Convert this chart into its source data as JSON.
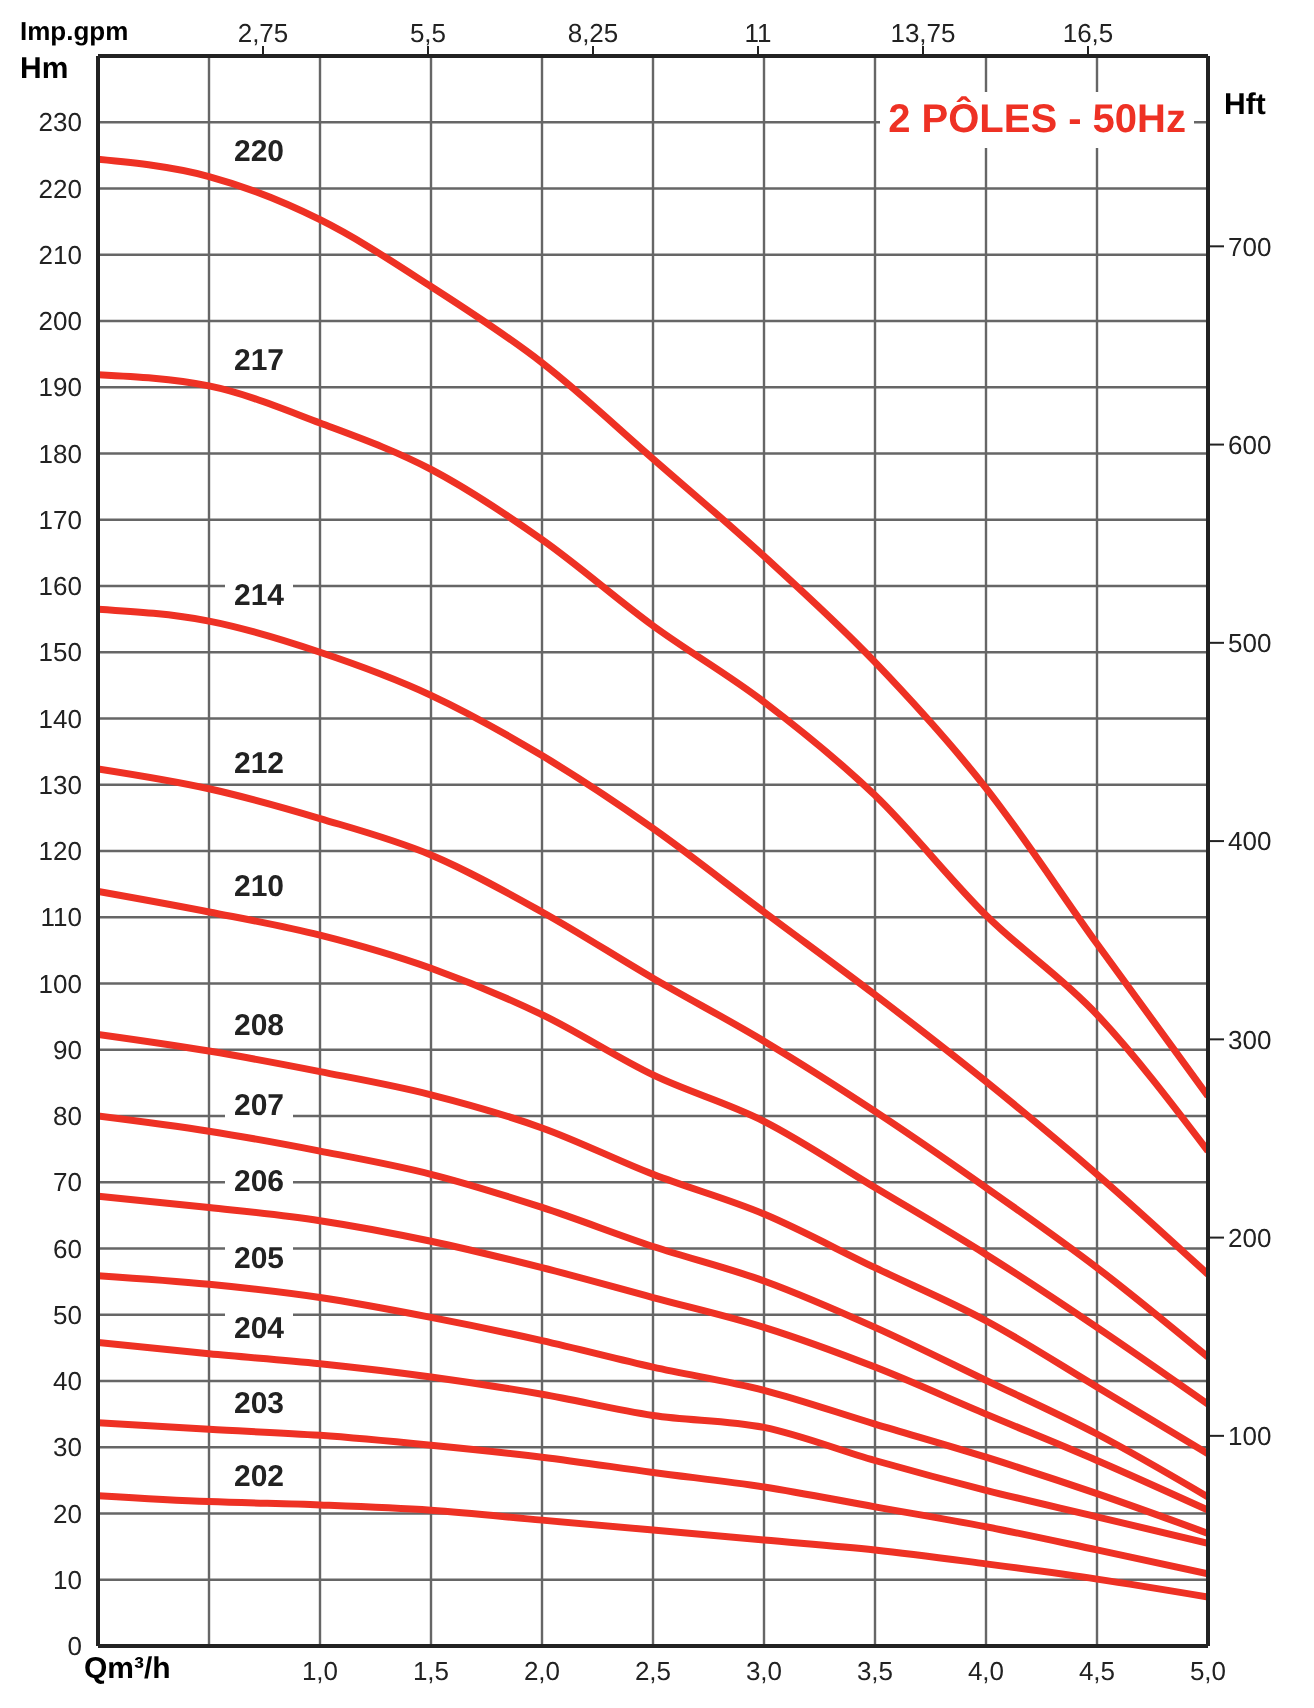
{
  "chart_data": {
    "type": "line",
    "title": "2 PÔLES - 50Hz",
    "xlabel": "Qm³/h",
    "ylabel": "Hm",
    "y2label": "Hft",
    "x2label": "Imp.gpm",
    "x": [
      0,
      0.5,
      1,
      1.5,
      2,
      2.5,
      3,
      3.5,
      4,
      4.5,
      5
    ],
    "series": [
      {
        "name": "220",
        "color": "#ee3124",
        "values": [
          224.4,
          221.8,
          215.3,
          205.2,
          193.7,
          179.2,
          164.5,
          148.5,
          129.5,
          106,
          83
        ]
      },
      {
        "name": "217",
        "color": "#ee3124",
        "values": [
          191.9,
          190.2,
          184.6,
          177.6,
          167,
          154,
          142.5,
          128.4,
          110.3,
          95.3,
          74.7
        ]
      },
      {
        "name": "214",
        "color": "#ee3124",
        "values": [
          156.5,
          154.7,
          150,
          143.5,
          134.4,
          123.4,
          110.8,
          98.3,
          85.2,
          71.2,
          56.1
        ]
      },
      {
        "name": "212",
        "color": "#ee3124",
        "values": [
          132.4,
          129.4,
          124.9,
          119.4,
          110.8,
          100.8,
          91.3,
          80.7,
          69.2,
          57.1,
          43.6
        ]
      },
      {
        "name": "210",
        "color": "#ee3124",
        "values": [
          113.9,
          110.8,
          107.3,
          102.3,
          95.3,
          86.2,
          79.2,
          69.2,
          59.1,
          48.1,
          36.5
        ]
      },
      {
        "name": "208",
        "color": "#ee3124",
        "values": [
          92.3,
          89.8,
          86.7,
          83.2,
          78.2,
          71.2,
          65.2,
          57.1,
          49.1,
          39.1,
          29
        ]
      },
      {
        "name": "207",
        "color": "#ee3124",
        "values": [
          80,
          77.7,
          74.7,
          71.2,
          66.2,
          60.3,
          55.1,
          48.1,
          40.1,
          32,
          22.5
        ]
      },
      {
        "name": "206",
        "color": "#ee3124",
        "values": [
          67.9,
          66.2,
          64.2,
          61.1,
          57.1,
          52.6,
          48.1,
          42.1,
          35,
          28,
          20.5
        ]
      },
      {
        "name": "205",
        "color": "#ee3124",
        "values": [
          55.9,
          54.6,
          52.6,
          49.6,
          46.1,
          42.1,
          38.6,
          33.5,
          28.5,
          23,
          17
        ]
      },
      {
        "name": "204",
        "color": "#ee3124",
        "values": [
          45.8,
          44.1,
          42.6,
          40.6,
          38,
          34.8,
          33,
          28,
          23.5,
          19.5,
          15.5
        ]
      },
      {
        "name": "203",
        "color": "#ee3124",
        "values": [
          33.7,
          32.7,
          31.8,
          30.3,
          28.5,
          26.2,
          24,
          21,
          18,
          14.5,
          10.9
        ]
      },
      {
        "name": "202",
        "color": "#ee3124",
        "values": [
          22.7,
          21.8,
          21.3,
          20.5,
          19,
          17.5,
          16,
          14.5,
          12.4,
          10.1,
          7.4
        ]
      }
    ],
    "xlim": [
      0,
      5
    ],
    "xticks": [
      {
        "value": 0.5,
        "label": null
      },
      {
        "value": 1,
        "label": "1,0"
      },
      {
        "value": 1.5,
        "label": "1,5"
      },
      {
        "value": 2,
        "label": "2,0"
      },
      {
        "value": 2.5,
        "label": "2,5"
      },
      {
        "value": 3,
        "label": "3,0"
      },
      {
        "value": 3.5,
        "label": "3,5"
      },
      {
        "value": 4,
        "label": "4,0"
      },
      {
        "value": 4.5,
        "label": "4,5"
      },
      {
        "value": 5,
        "label": "5,0"
      }
    ],
    "ylim": [
      0,
      240
    ],
    "yticks": [
      0,
      10,
      20,
      30,
      40,
      50,
      60,
      70,
      80,
      90,
      100,
      110,
      120,
      130,
      140,
      150,
      160,
      170,
      180,
      190,
      200,
      210,
      220,
      230
    ],
    "y2lim": [
      -6,
      796
    ],
    "y2ticks": [
      100,
      200,
      300,
      400,
      500,
      600,
      700
    ],
    "x2lim": [
      0,
      18.5
    ],
    "x2ticks": [
      {
        "value": 2.75,
        "label": "2,75"
      },
      {
        "value": 5.5,
        "label": "5,5"
      },
      {
        "value": 8.25,
        "label": "8,25"
      },
      {
        "value": 11,
        "label": "11"
      },
      {
        "value": 13.75,
        "label": "13,75"
      },
      {
        "value": 16.5,
        "label": "16,5"
      }
    ],
    "grid": true,
    "legend": false,
    "marker": "none",
    "line_style": "solid"
  }
}
